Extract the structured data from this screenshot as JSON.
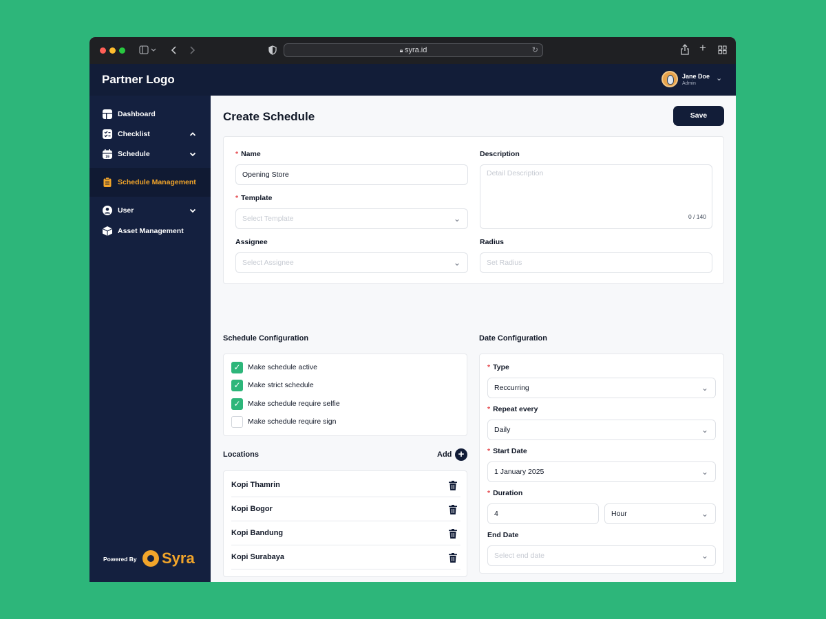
{
  "browser": {
    "url": "syra.id"
  },
  "header": {
    "brand": "Partner Logo",
    "user_name": "Jane Doe",
    "user_role": "Admin"
  },
  "sidebar": {
    "items": [
      {
        "label": "Dashboard"
      },
      {
        "label": "Checklist"
      },
      {
        "label": "Schedule"
      },
      {
        "label": "Schedule Management"
      },
      {
        "label": "User"
      },
      {
        "label": "Asset Management"
      }
    ],
    "powered_by": "Powered By",
    "powered_brand": "Syra"
  },
  "page": {
    "title": "Create Schedule",
    "save_label": "Save"
  },
  "form": {
    "name_label": "Name",
    "name_value": "Opening Store",
    "description_label": "Description",
    "description_placeholder": "Detail Description",
    "description_counter": "0 / 140",
    "template_label": "Template",
    "template_placeholder": "Select Template",
    "assignee_label": "Assignee",
    "assignee_placeholder": "Select Assignee",
    "radius_label": "Radius",
    "radius_placeholder": "Set Radius"
  },
  "schedule_config": {
    "title": "Schedule Configuration",
    "options": [
      {
        "label": "Make schedule active",
        "checked": true
      },
      {
        "label": "Make strict schedule",
        "checked": true
      },
      {
        "label": "Make schedule require selfie",
        "checked": true
      },
      {
        "label": "Make schedule require sign",
        "checked": false
      }
    ]
  },
  "locations": {
    "title": "Locations",
    "add_label": "Add",
    "items": [
      "Kopi Thamrin",
      "Kopi Bogor",
      "Kopi Bandung",
      "Kopi Surabaya"
    ]
  },
  "date_config": {
    "title": "Date Configuration",
    "type_label": "Type",
    "type_value": "Reccurring",
    "repeat_label": "Repeat every",
    "repeat_value": "Daily",
    "start_label": "Start Date",
    "start_value": "1 January 2025",
    "duration_label": "Duration",
    "duration_value": "4",
    "duration_unit": "Hour",
    "end_label": "End Date",
    "end_placeholder": "Select end date"
  },
  "colors": {
    "accent": "#2db67a",
    "navy": "#121d38",
    "highlight": "#f2a52a",
    "required": "#e5484d"
  },
  "icons": [
    "sidebar-toggle-icon",
    "back-icon",
    "forward-icon",
    "shield-icon",
    "lock-icon",
    "reload-icon",
    "share-icon",
    "new-tab-icon",
    "tab-grid-icon",
    "dashboard-icon",
    "checklist-icon",
    "calendar-icon",
    "clipboard-icon",
    "user-icon",
    "box-icon",
    "trash-icon",
    "plus-icon",
    "chevron-down-icon",
    "check-icon"
  ]
}
